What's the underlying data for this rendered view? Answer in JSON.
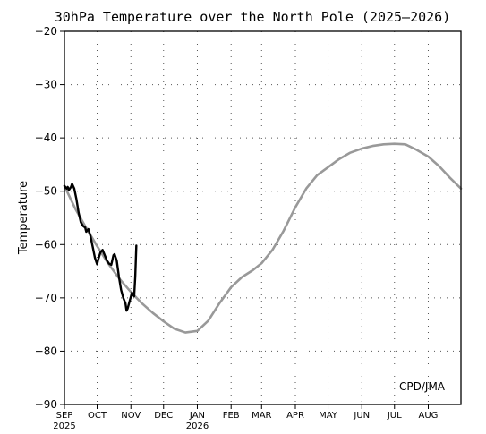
{
  "chart_data": {
    "type": "line",
    "title": "30hPa Temperature over the North Pole (2025–2026)",
    "ylabel": "Temperature",
    "credit": "CPD/JMA",
    "ylim": [
      -90,
      -20
    ],
    "yticks": [
      -20,
      -30,
      -40,
      -50,
      -60,
      -70,
      -80,
      -90
    ],
    "ytick_labels": [
      "−20",
      "−30",
      "−40",
      "−50",
      "−60",
      "−70",
      "−80",
      "−90"
    ],
    "xlim": [
      "2025-09-01",
      "2026-08-31"
    ],
    "xticks": [
      {
        "date": "2025-09-01",
        "label": "SEP",
        "year_label": "2025"
      },
      {
        "date": "2025-10-01",
        "label": "OCT",
        "year_label": ""
      },
      {
        "date": "2025-11-01",
        "label": "NOV",
        "year_label": ""
      },
      {
        "date": "2025-12-01",
        "label": "DEC",
        "year_label": ""
      },
      {
        "date": "2026-01-01",
        "label": "JAN",
        "year_label": "2026"
      },
      {
        "date": "2026-02-01",
        "label": "FEB",
        "year_label": ""
      },
      {
        "date": "2026-03-01",
        "label": "MAR",
        "year_label": ""
      },
      {
        "date": "2026-04-01",
        "label": "APR",
        "year_label": ""
      },
      {
        "date": "2026-05-01",
        "label": "MAY",
        "year_label": ""
      },
      {
        "date": "2026-06-01",
        "label": "JUN",
        "year_label": ""
      },
      {
        "date": "2026-07-01",
        "label": "JUL",
        "year_label": ""
      },
      {
        "date": "2026-08-01",
        "label": "AUG",
        "year_label": ""
      }
    ],
    "grid": true,
    "series": [
      {
        "color": "#999999",
        "points": [
          [
            "2025-09-01",
            -49.0
          ],
          [
            "2025-09-11",
            -53.3
          ],
          [
            "2025-09-21",
            -56.9
          ],
          [
            "2025-10-01",
            -60.3
          ],
          [
            "2025-10-11",
            -63.5
          ],
          [
            "2025-10-21",
            -66.3
          ],
          [
            "2025-11-01",
            -68.9
          ],
          [
            "2025-11-11",
            -71.0
          ],
          [
            "2025-11-21",
            -72.8
          ],
          [
            "2025-12-01",
            -74.4
          ],
          [
            "2025-12-11",
            -75.8
          ],
          [
            "2025-12-21",
            -76.5
          ],
          [
            "2026-01-01",
            -76.2
          ],
          [
            "2026-01-11",
            -74.3
          ],
          [
            "2026-01-21",
            -71.1
          ],
          [
            "2026-02-01",
            -68.0
          ],
          [
            "2026-02-11",
            -66.1
          ],
          [
            "2026-02-21",
            -64.8
          ],
          [
            "2026-03-01",
            -63.5
          ],
          [
            "2026-03-11",
            -61.0
          ],
          [
            "2026-03-21",
            -57.5
          ],
          [
            "2026-04-01",
            -53.0
          ],
          [
            "2026-04-11",
            -49.5
          ],
          [
            "2026-04-21",
            -47.0
          ],
          [
            "2026-05-01",
            -45.5
          ],
          [
            "2026-05-11",
            -44.0
          ],
          [
            "2026-05-21",
            -42.8
          ],
          [
            "2026-06-01",
            -42.0
          ],
          [
            "2026-06-11",
            -41.5
          ],
          [
            "2026-06-21",
            -41.2
          ],
          [
            "2026-07-01",
            -41.1
          ],
          [
            "2026-07-11",
            -41.2
          ],
          [
            "2026-07-21",
            -42.2
          ],
          [
            "2026-08-01",
            -43.5
          ],
          [
            "2026-08-11",
            -45.3
          ],
          [
            "2026-08-21",
            -47.5
          ],
          [
            "2026-08-31",
            -49.5
          ]
        ]
      },
      {
        "color": "#000000",
        "points": [
          [
            "2025-09-01",
            -49.0
          ],
          [
            "2025-09-03",
            -49.5
          ],
          [
            "2025-09-04",
            -49.2
          ],
          [
            "2025-09-05",
            -49.8
          ],
          [
            "2025-09-07",
            -49.2
          ],
          [
            "2025-09-08",
            -48.6
          ],
          [
            "2025-09-10",
            -49.5
          ],
          [
            "2025-09-12",
            -51.5
          ],
          [
            "2025-09-14",
            -54.0
          ],
          [
            "2025-09-16",
            -55.8
          ],
          [
            "2025-09-18",
            -56.5
          ],
          [
            "2025-09-20",
            -56.8
          ],
          [
            "2025-09-21",
            -57.6
          ],
          [
            "2025-09-23",
            -57.1
          ],
          [
            "2025-09-25",
            -58.5
          ],
          [
            "2025-09-27",
            -60.5
          ],
          [
            "2025-09-29",
            -62.5
          ],
          [
            "2025-10-01",
            -63.7
          ],
          [
            "2025-10-02",
            -62.8
          ],
          [
            "2025-10-04",
            -61.5
          ],
          [
            "2025-10-06",
            -61.0
          ],
          [
            "2025-10-08",
            -62.0
          ],
          [
            "2025-10-10",
            -63.0
          ],
          [
            "2025-10-12",
            -63.6
          ],
          [
            "2025-10-14",
            -63.8
          ],
          [
            "2025-10-16",
            -62.0
          ],
          [
            "2025-10-17",
            -61.8
          ],
          [
            "2025-10-19",
            -63.0
          ],
          [
            "2025-10-21",
            -66.0
          ],
          [
            "2025-10-23",
            -68.5
          ],
          [
            "2025-10-25",
            -70.0
          ],
          [
            "2025-10-27",
            -71.0
          ],
          [
            "2025-10-28",
            -72.4
          ],
          [
            "2025-10-29",
            -72.0
          ],
          [
            "2025-10-31",
            -70.5
          ],
          [
            "2025-11-02",
            -69.0
          ],
          [
            "2025-11-03",
            -69.5
          ],
          [
            "2025-11-04",
            -69.7
          ],
          [
            "2025-11-05",
            -66.0
          ],
          [
            "2025-11-06",
            -60.2
          ]
        ]
      }
    ]
  }
}
